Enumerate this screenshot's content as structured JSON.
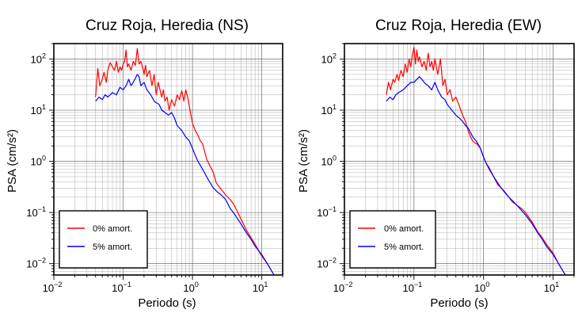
{
  "chart_data": [
    {
      "type": "line",
      "title": "Cruz Roja, Heredia (NS)",
      "xlabel": "Periodo (s)",
      "ylabel": "PSA (cm/s²)",
      "xscale": "log",
      "yscale": "log",
      "xlim": [
        0.01,
        20
      ],
      "ylim": [
        0.006,
        200
      ],
      "xticks": [
        {
          "base": "10",
          "exp": "−2",
          "value": 0.01
        },
        {
          "base": "10",
          "exp": "−1",
          "value": 0.1
        },
        {
          "base": "10",
          "exp": "0",
          "value": 1
        },
        {
          "base": "10",
          "exp": "1",
          "value": 10
        }
      ],
      "yticks": [
        {
          "base": "10",
          "exp": "−2",
          "value": 0.01
        },
        {
          "base": "10",
          "exp": "−1",
          "value": 0.1
        },
        {
          "base": "10",
          "exp": "0",
          "value": 1
        },
        {
          "base": "10",
          "exp": "1",
          "value": 10
        },
        {
          "base": "10",
          "exp": "2",
          "value": 100
        }
      ],
      "grid": true,
      "legend_position": "bottom-left",
      "series": [
        {
          "name": "0% amort.",
          "color": "#ff0000",
          "x": [
            0.04,
            0.043,
            0.046,
            0.05,
            0.053,
            0.057,
            0.06,
            0.065,
            0.07,
            0.075,
            0.08,
            0.085,
            0.09,
            0.095,
            0.1,
            0.105,
            0.11,
            0.115,
            0.12,
            0.13,
            0.14,
            0.15,
            0.16,
            0.17,
            0.18,
            0.19,
            0.2,
            0.21,
            0.22,
            0.24,
            0.26,
            0.28,
            0.3,
            0.32,
            0.34,
            0.36,
            0.38,
            0.4,
            0.43,
            0.46,
            0.5,
            0.55,
            0.6,
            0.65,
            0.7,
            0.75,
            0.8,
            0.85,
            0.9,
            1.0,
            1.1,
            1.2,
            1.3,
            1.4,
            1.6,
            1.8,
            2.0,
            2.2,
            2.5,
            2.8,
            3.0,
            3.5,
            4.0,
            4.5,
            5.0,
            6.0,
            7.0,
            8.0,
            9.0,
            10.0,
            12.0,
            15.0
          ],
          "y": [
            18,
            65,
            30,
            40,
            55,
            35,
            60,
            85,
            70,
            60,
            90,
            55,
            70,
            60,
            80,
            90,
            150,
            70,
            80,
            60,
            90,
            75,
            160,
            80,
            90,
            70,
            50,
            75,
            45,
            60,
            30,
            50,
            20,
            35,
            25,
            18,
            25,
            15,
            18,
            10,
            16,
            12,
            20,
            16,
            24,
            15,
            25,
            18,
            12,
            5.5,
            4,
            3.2,
            2.5,
            2.2,
            1.1,
            0.8,
            0.6,
            0.38,
            0.3,
            0.25,
            0.22,
            0.18,
            0.14,
            0.1,
            0.075,
            0.045,
            0.032,
            0.024,
            0.018,
            0.014,
            0.01,
            0.006
          ]
        },
        {
          "name": "5% amort.",
          "color": "#0000ff",
          "x": [
            0.04,
            0.045,
            0.05,
            0.055,
            0.06,
            0.07,
            0.08,
            0.09,
            0.1,
            0.11,
            0.12,
            0.13,
            0.14,
            0.15,
            0.16,
            0.17,
            0.18,
            0.2,
            0.22,
            0.25,
            0.28,
            0.3,
            0.33,
            0.36,
            0.4,
            0.45,
            0.5,
            0.55,
            0.6,
            0.7,
            0.8,
            0.9,
            1.0,
            1.1,
            1.2,
            1.4,
            1.6,
            1.8,
            2.0,
            2.3,
            2.6,
            3.0,
            3.5,
            4.0,
            5.0,
            6.0,
            7.0,
            8.0,
            10.0,
            12.0,
            15.0
          ],
          "y": [
            15,
            18,
            16,
            20,
            18,
            22,
            20,
            28,
            25,
            30,
            40,
            30,
            35,
            42,
            50,
            45,
            30,
            35,
            25,
            20,
            15,
            14,
            13,
            10,
            9,
            8,
            9,
            7,
            5,
            4,
            3,
            2.5,
            1.8,
            1.3,
            1.0,
            0.7,
            0.5,
            0.38,
            0.3,
            0.25,
            0.22,
            0.18,
            0.12,
            0.095,
            0.06,
            0.04,
            0.03,
            0.022,
            0.015,
            0.01,
            0.006
          ]
        }
      ]
    },
    {
      "type": "line",
      "title": "Cruz Roja, Heredia (EW)",
      "xlabel": "Periodo (s)",
      "ylabel": "PSA (cm/s²)",
      "xscale": "log",
      "yscale": "log",
      "xlim": [
        0.01,
        20
      ],
      "ylim": [
        0.006,
        200
      ],
      "xticks": [
        {
          "base": "10",
          "exp": "−2",
          "value": 0.01
        },
        {
          "base": "10",
          "exp": "−1",
          "value": 0.1
        },
        {
          "base": "10",
          "exp": "0",
          "value": 1
        },
        {
          "base": "10",
          "exp": "1",
          "value": 10
        }
      ],
      "yticks": [
        {
          "base": "10",
          "exp": "−2",
          "value": 0.01
        },
        {
          "base": "10",
          "exp": "−1",
          "value": 0.1
        },
        {
          "base": "10",
          "exp": "0",
          "value": 1
        },
        {
          "base": "10",
          "exp": "1",
          "value": 10
        },
        {
          "base": "10",
          "exp": "2",
          "value": 100
        }
      ],
      "grid": true,
      "legend_position": "bottom-left",
      "series": [
        {
          "name": "0% amort.",
          "color": "#ff0000",
          "x": [
            0.04,
            0.043,
            0.046,
            0.05,
            0.053,
            0.057,
            0.06,
            0.065,
            0.07,
            0.075,
            0.08,
            0.085,
            0.09,
            0.095,
            0.1,
            0.105,
            0.11,
            0.115,
            0.12,
            0.13,
            0.14,
            0.15,
            0.16,
            0.17,
            0.18,
            0.19,
            0.2,
            0.22,
            0.24,
            0.26,
            0.28,
            0.3,
            0.33,
            0.36,
            0.4,
            0.45,
            0.5,
            0.55,
            0.6,
            0.65,
            0.7,
            0.75,
            0.8,
            0.9,
            1.0,
            1.1,
            1.2,
            1.4,
            1.6,
            1.8,
            2.0,
            2.3,
            2.6,
            3.0,
            3.5,
            4.0,
            5.0,
            6.0,
            7.0,
            8.0,
            10.0,
            12.0,
            15.0
          ],
          "y": [
            20,
            35,
            25,
            40,
            35,
            50,
            38,
            60,
            45,
            80,
            55,
            100,
            70,
            120,
            170,
            80,
            150,
            90,
            110,
            70,
            90,
            60,
            130,
            70,
            90,
            60,
            100,
            50,
            100,
            30,
            40,
            20,
            25,
            15,
            18,
            12,
            8,
            6,
            4,
            3,
            2.5,
            2.3,
            2.2,
            1.8,
            1.2,
            0.9,
            0.7,
            0.5,
            0.35,
            0.3,
            0.26,
            0.2,
            0.16,
            0.14,
            0.12,
            0.1,
            0.065,
            0.042,
            0.032,
            0.024,
            0.016,
            0.01,
            0.006
          ]
        },
        {
          "name": "5% amort.",
          "color": "#0000ff",
          "x": [
            0.04,
            0.045,
            0.05,
            0.055,
            0.06,
            0.07,
            0.08,
            0.09,
            0.1,
            0.11,
            0.12,
            0.13,
            0.14,
            0.15,
            0.16,
            0.18,
            0.2,
            0.22,
            0.25,
            0.28,
            0.3,
            0.35,
            0.4,
            0.45,
            0.5,
            0.55,
            0.6,
            0.7,
            0.8,
            0.9,
            1.0,
            1.1,
            1.2,
            1.4,
            1.6,
            1.8,
            2.0,
            2.3,
            2.6,
            3.0,
            3.5,
            4.0,
            5.0,
            6.0,
            7.0,
            8.0,
            10.0,
            12.0,
            15.0
          ],
          "y": [
            15,
            18,
            16,
            20,
            22,
            25,
            30,
            35,
            35,
            40,
            45,
            40,
            35,
            32,
            30,
            25,
            35,
            25,
            18,
            16,
            13,
            10,
            8,
            7,
            6,
            5,
            4.5,
            3,
            2.4,
            1.8,
            1.2,
            0.9,
            0.75,
            0.5,
            0.38,
            0.3,
            0.25,
            0.2,
            0.17,
            0.14,
            0.11,
            0.09,
            0.06,
            0.04,
            0.03,
            0.022,
            0.015,
            0.01,
            0.006
          ]
        }
      ]
    }
  ]
}
